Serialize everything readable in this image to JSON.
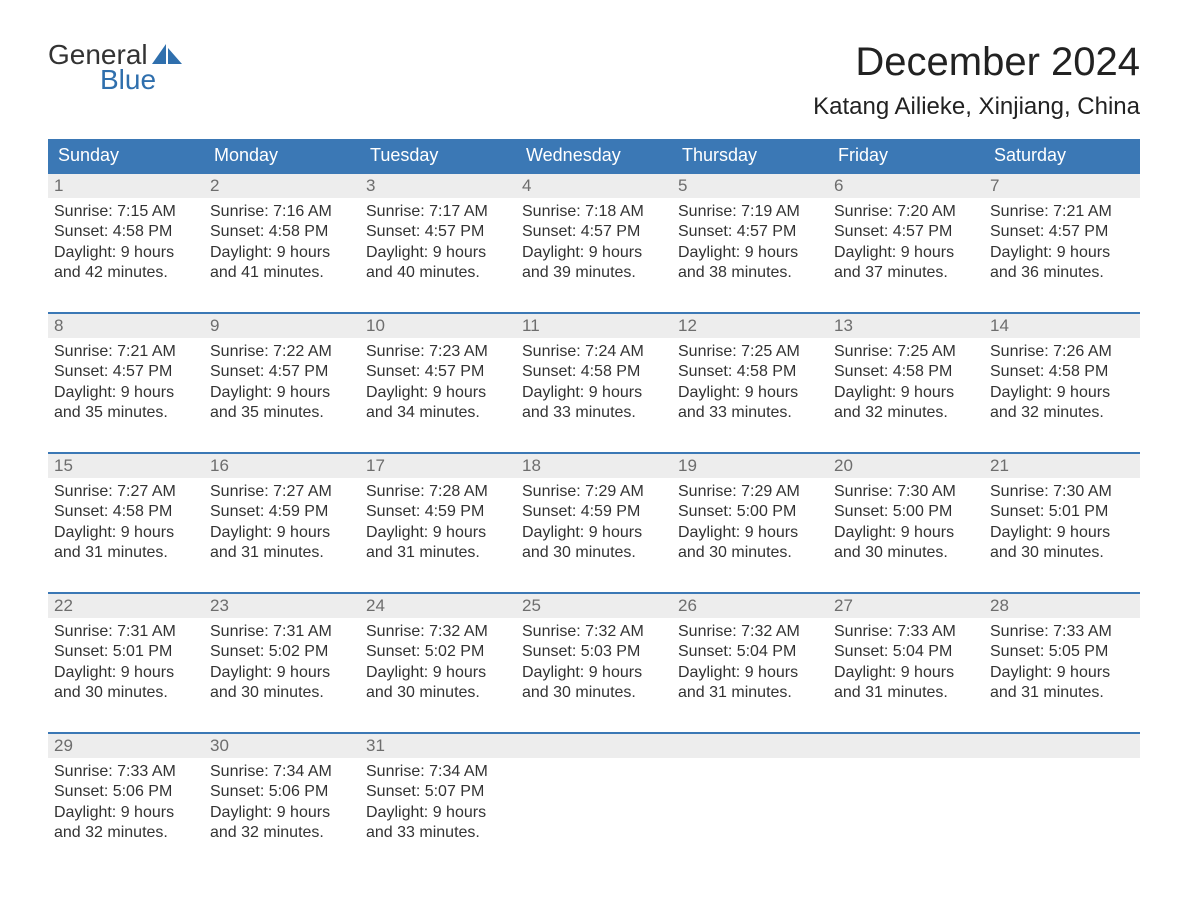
{
  "brand": {
    "word1": "General",
    "word2": "Blue",
    "accent_color": "#2f6fad"
  },
  "title": "December 2024",
  "location": "Katang Ailieke, Xinjiang, China",
  "colors": {
    "header_bg": "#3b78b5",
    "header_text": "#ffffff",
    "daynum_bg": "#ededed",
    "daynum_text": "#6d6d6d",
    "body_text": "#333333",
    "week_border": "#3b78b5",
    "page_bg": "#ffffff"
  },
  "day_names": [
    "Sunday",
    "Monday",
    "Tuesday",
    "Wednesday",
    "Thursday",
    "Friday",
    "Saturday"
  ],
  "weeks": [
    [
      {
        "n": "1",
        "sr": "7:15 AM",
        "ss": "4:58 PM",
        "dl": "9 hours and 42 minutes."
      },
      {
        "n": "2",
        "sr": "7:16 AM",
        "ss": "4:58 PM",
        "dl": "9 hours and 41 minutes."
      },
      {
        "n": "3",
        "sr": "7:17 AM",
        "ss": "4:57 PM",
        "dl": "9 hours and 40 minutes."
      },
      {
        "n": "4",
        "sr": "7:18 AM",
        "ss": "4:57 PM",
        "dl": "9 hours and 39 minutes."
      },
      {
        "n": "5",
        "sr": "7:19 AM",
        "ss": "4:57 PM",
        "dl": "9 hours and 38 minutes."
      },
      {
        "n": "6",
        "sr": "7:20 AM",
        "ss": "4:57 PM",
        "dl": "9 hours and 37 minutes."
      },
      {
        "n": "7",
        "sr": "7:21 AM",
        "ss": "4:57 PM",
        "dl": "9 hours and 36 minutes."
      }
    ],
    [
      {
        "n": "8",
        "sr": "7:21 AM",
        "ss": "4:57 PM",
        "dl": "9 hours and 35 minutes."
      },
      {
        "n": "9",
        "sr": "7:22 AM",
        "ss": "4:57 PM",
        "dl": "9 hours and 35 minutes."
      },
      {
        "n": "10",
        "sr": "7:23 AM",
        "ss": "4:57 PM",
        "dl": "9 hours and 34 minutes."
      },
      {
        "n": "11",
        "sr": "7:24 AM",
        "ss": "4:58 PM",
        "dl": "9 hours and 33 minutes."
      },
      {
        "n": "12",
        "sr": "7:25 AM",
        "ss": "4:58 PM",
        "dl": "9 hours and 33 minutes."
      },
      {
        "n": "13",
        "sr": "7:25 AM",
        "ss": "4:58 PM",
        "dl": "9 hours and 32 minutes."
      },
      {
        "n": "14",
        "sr": "7:26 AM",
        "ss": "4:58 PM",
        "dl": "9 hours and 32 minutes."
      }
    ],
    [
      {
        "n": "15",
        "sr": "7:27 AM",
        "ss": "4:58 PM",
        "dl": "9 hours and 31 minutes."
      },
      {
        "n": "16",
        "sr": "7:27 AM",
        "ss": "4:59 PM",
        "dl": "9 hours and 31 minutes."
      },
      {
        "n": "17",
        "sr": "7:28 AM",
        "ss": "4:59 PM",
        "dl": "9 hours and 31 minutes."
      },
      {
        "n": "18",
        "sr": "7:29 AM",
        "ss": "4:59 PM",
        "dl": "9 hours and 30 minutes."
      },
      {
        "n": "19",
        "sr": "7:29 AM",
        "ss": "5:00 PM",
        "dl": "9 hours and 30 minutes."
      },
      {
        "n": "20",
        "sr": "7:30 AM",
        "ss": "5:00 PM",
        "dl": "9 hours and 30 minutes."
      },
      {
        "n": "21",
        "sr": "7:30 AM",
        "ss": "5:01 PM",
        "dl": "9 hours and 30 minutes."
      }
    ],
    [
      {
        "n": "22",
        "sr": "7:31 AM",
        "ss": "5:01 PM",
        "dl": "9 hours and 30 minutes."
      },
      {
        "n": "23",
        "sr": "7:31 AM",
        "ss": "5:02 PM",
        "dl": "9 hours and 30 minutes."
      },
      {
        "n": "24",
        "sr": "7:32 AM",
        "ss": "5:02 PM",
        "dl": "9 hours and 30 minutes."
      },
      {
        "n": "25",
        "sr": "7:32 AM",
        "ss": "5:03 PM",
        "dl": "9 hours and 30 minutes."
      },
      {
        "n": "26",
        "sr": "7:32 AM",
        "ss": "5:04 PM",
        "dl": "9 hours and 31 minutes."
      },
      {
        "n": "27",
        "sr": "7:33 AM",
        "ss": "5:04 PM",
        "dl": "9 hours and 31 minutes."
      },
      {
        "n": "28",
        "sr": "7:33 AM",
        "ss": "5:05 PM",
        "dl": "9 hours and 31 minutes."
      }
    ],
    [
      {
        "n": "29",
        "sr": "7:33 AM",
        "ss": "5:06 PM",
        "dl": "9 hours and 32 minutes."
      },
      {
        "n": "30",
        "sr": "7:34 AM",
        "ss": "5:06 PM",
        "dl": "9 hours and 32 minutes."
      },
      {
        "n": "31",
        "sr": "7:34 AM",
        "ss": "5:07 PM",
        "dl": "9 hours and 33 minutes."
      },
      null,
      null,
      null,
      null
    ]
  ],
  "labels": {
    "sunrise": "Sunrise: ",
    "sunset": "Sunset: ",
    "daylight": "Daylight: "
  }
}
